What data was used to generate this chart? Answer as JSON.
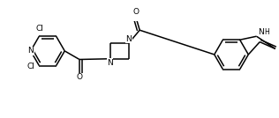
{
  "background": "#ffffff",
  "line_color": "#000000",
  "lw": 1.1,
  "figsize": [
    3.16,
    1.34
  ],
  "dpi": 100,
  "xlim": [
    -3.6,
    2.6
  ],
  "ylim": [
    -0.85,
    0.85
  ]
}
